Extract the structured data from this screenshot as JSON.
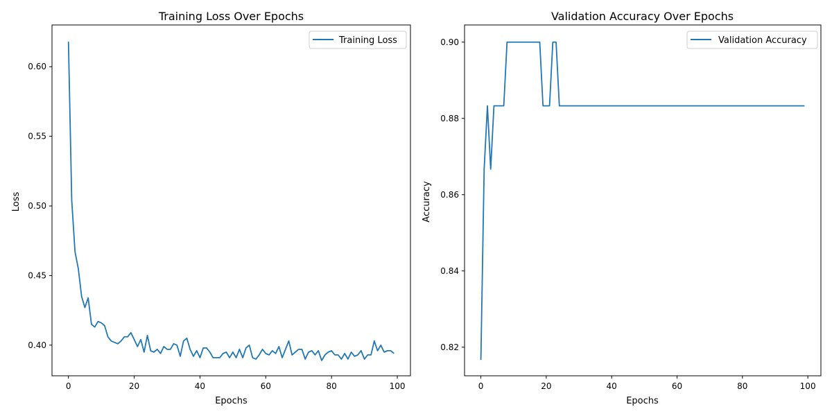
{
  "chart_data": [
    {
      "type": "line",
      "title": "Training Loss Over Epochs",
      "xlabel": "Epochs",
      "ylabel": "Loss",
      "xlim": [
        -5,
        104
      ],
      "ylim": [
        0.378,
        0.63
      ],
      "xticks": [
        0,
        20,
        40,
        60,
        80,
        100
      ],
      "yticks": [
        0.4,
        0.45,
        0.5,
        0.55,
        0.6
      ],
      "ytick_labels": [
        "0.40",
        "0.45",
        "0.50",
        "0.55",
        "0.60"
      ],
      "grid": false,
      "legend_position": "upper-right",
      "series": [
        {
          "name": "Training Loss",
          "color": "#1f77b4",
          "x": [
            0,
            1,
            2,
            3,
            4,
            5,
            6,
            7,
            8,
            9,
            10,
            11,
            12,
            13,
            14,
            15,
            16,
            17,
            18,
            19,
            20,
            21,
            22,
            23,
            24,
            25,
            26,
            27,
            28,
            29,
            30,
            31,
            32,
            33,
            34,
            35,
            36,
            37,
            38,
            39,
            40,
            41,
            42,
            43,
            44,
            45,
            46,
            47,
            48,
            49,
            50,
            51,
            52,
            53,
            54,
            55,
            56,
            57,
            58,
            59,
            60,
            61,
            62,
            63,
            64,
            65,
            66,
            67,
            68,
            69,
            70,
            71,
            72,
            73,
            74,
            75,
            76,
            77,
            78,
            79,
            80,
            81,
            82,
            83,
            84,
            85,
            86,
            87,
            88,
            89,
            90,
            91,
            92,
            93,
            94,
            95,
            96,
            97,
            98,
            99
          ],
          "values": [
            0.618,
            0.504,
            0.467,
            0.455,
            0.435,
            0.427,
            0.434,
            0.415,
            0.413,
            0.417,
            0.416,
            0.414,
            0.406,
            0.403,
            0.402,
            0.401,
            0.403,
            0.406,
            0.406,
            0.409,
            0.404,
            0.399,
            0.404,
            0.395,
            0.407,
            0.396,
            0.395,
            0.397,
            0.394,
            0.399,
            0.397,
            0.397,
            0.401,
            0.4,
            0.392,
            0.403,
            0.405,
            0.397,
            0.392,
            0.396,
            0.391,
            0.398,
            0.398,
            0.395,
            0.391,
            0.391,
            0.391,
            0.394,
            0.395,
            0.391,
            0.395,
            0.391,
            0.397,
            0.391,
            0.398,
            0.4,
            0.391,
            0.39,
            0.393,
            0.397,
            0.394,
            0.393,
            0.396,
            0.394,
            0.399,
            0.391,
            0.397,
            0.403,
            0.393,
            0.395,
            0.397,
            0.397,
            0.39,
            0.395,
            0.396,
            0.393,
            0.396,
            0.389,
            0.393,
            0.395,
            0.396,
            0.393,
            0.393,
            0.39,
            0.394,
            0.39,
            0.395,
            0.392,
            0.393,
            0.396,
            0.39,
            0.393,
            0.393,
            0.403,
            0.396,
            0.4,
            0.395,
            0.396,
            0.396,
            0.394
          ]
        }
      ]
    },
    {
      "type": "line",
      "title": "Validation Accuracy Over Epochs",
      "xlabel": "Epochs",
      "ylabel": "Accuracy",
      "xlim": [
        -5,
        104
      ],
      "ylim": [
        0.8125,
        0.9045
      ],
      "xticks": [
        0,
        20,
        40,
        60,
        80,
        100
      ],
      "yticks": [
        0.82,
        0.84,
        0.86,
        0.88,
        0.9
      ],
      "ytick_labels": [
        "0.82",
        "0.84",
        "0.86",
        "0.88",
        "0.90"
      ],
      "grid": false,
      "legend_position": "upper-right",
      "series": [
        {
          "name": "Validation Accuracy",
          "color": "#1f77b4",
          "x": [
            0,
            1,
            2,
            3,
            4,
            5,
            6,
            7,
            8,
            9,
            10,
            11,
            12,
            13,
            14,
            15,
            16,
            17,
            18,
            19,
            20,
            21,
            22,
            23,
            24,
            25,
            26,
            27,
            28,
            29,
            30,
            31,
            32,
            33,
            34,
            35,
            36,
            37,
            38,
            39,
            40,
            41,
            42,
            43,
            44,
            45,
            46,
            47,
            48,
            49,
            50,
            51,
            52,
            53,
            54,
            55,
            56,
            57,
            58,
            59,
            60,
            61,
            62,
            63,
            64,
            65,
            66,
            67,
            68,
            69,
            70,
            71,
            72,
            73,
            74,
            75,
            76,
            77,
            78,
            79,
            80,
            81,
            82,
            83,
            84,
            85,
            86,
            87,
            88,
            89,
            90,
            91,
            92,
            93,
            94,
            95,
            96,
            97,
            98,
            99
          ],
          "values": [
            0.8167,
            0.8667,
            0.8833,
            0.8667,
            0.8833,
            0.8833,
            0.8833,
            0.8833,
            0.9,
            0.9,
            0.9,
            0.9,
            0.9,
            0.9,
            0.9,
            0.9,
            0.9,
            0.9,
            0.9,
            0.8833,
            0.8833,
            0.8833,
            0.9,
            0.9,
            0.8833,
            0.8833,
            0.8833,
            0.8833,
            0.8833,
            0.8833,
            0.8833,
            0.8833,
            0.8833,
            0.8833,
            0.8833,
            0.8833,
            0.8833,
            0.8833,
            0.8833,
            0.8833,
            0.8833,
            0.8833,
            0.8833,
            0.8833,
            0.8833,
            0.8833,
            0.8833,
            0.8833,
            0.8833,
            0.8833,
            0.8833,
            0.8833,
            0.8833,
            0.8833,
            0.8833,
            0.8833,
            0.8833,
            0.8833,
            0.8833,
            0.8833,
            0.8833,
            0.8833,
            0.8833,
            0.8833,
            0.8833,
            0.8833,
            0.8833,
            0.8833,
            0.8833,
            0.8833,
            0.8833,
            0.8833,
            0.8833,
            0.8833,
            0.8833,
            0.8833,
            0.8833,
            0.8833,
            0.8833,
            0.8833,
            0.8833,
            0.8833,
            0.8833,
            0.8833,
            0.8833,
            0.8833,
            0.8833,
            0.8833,
            0.8833,
            0.8833,
            0.8833,
            0.8833,
            0.8833,
            0.8833,
            0.8833,
            0.8833,
            0.8833,
            0.8833,
            0.8833,
            0.8833
          ]
        }
      ]
    }
  ]
}
